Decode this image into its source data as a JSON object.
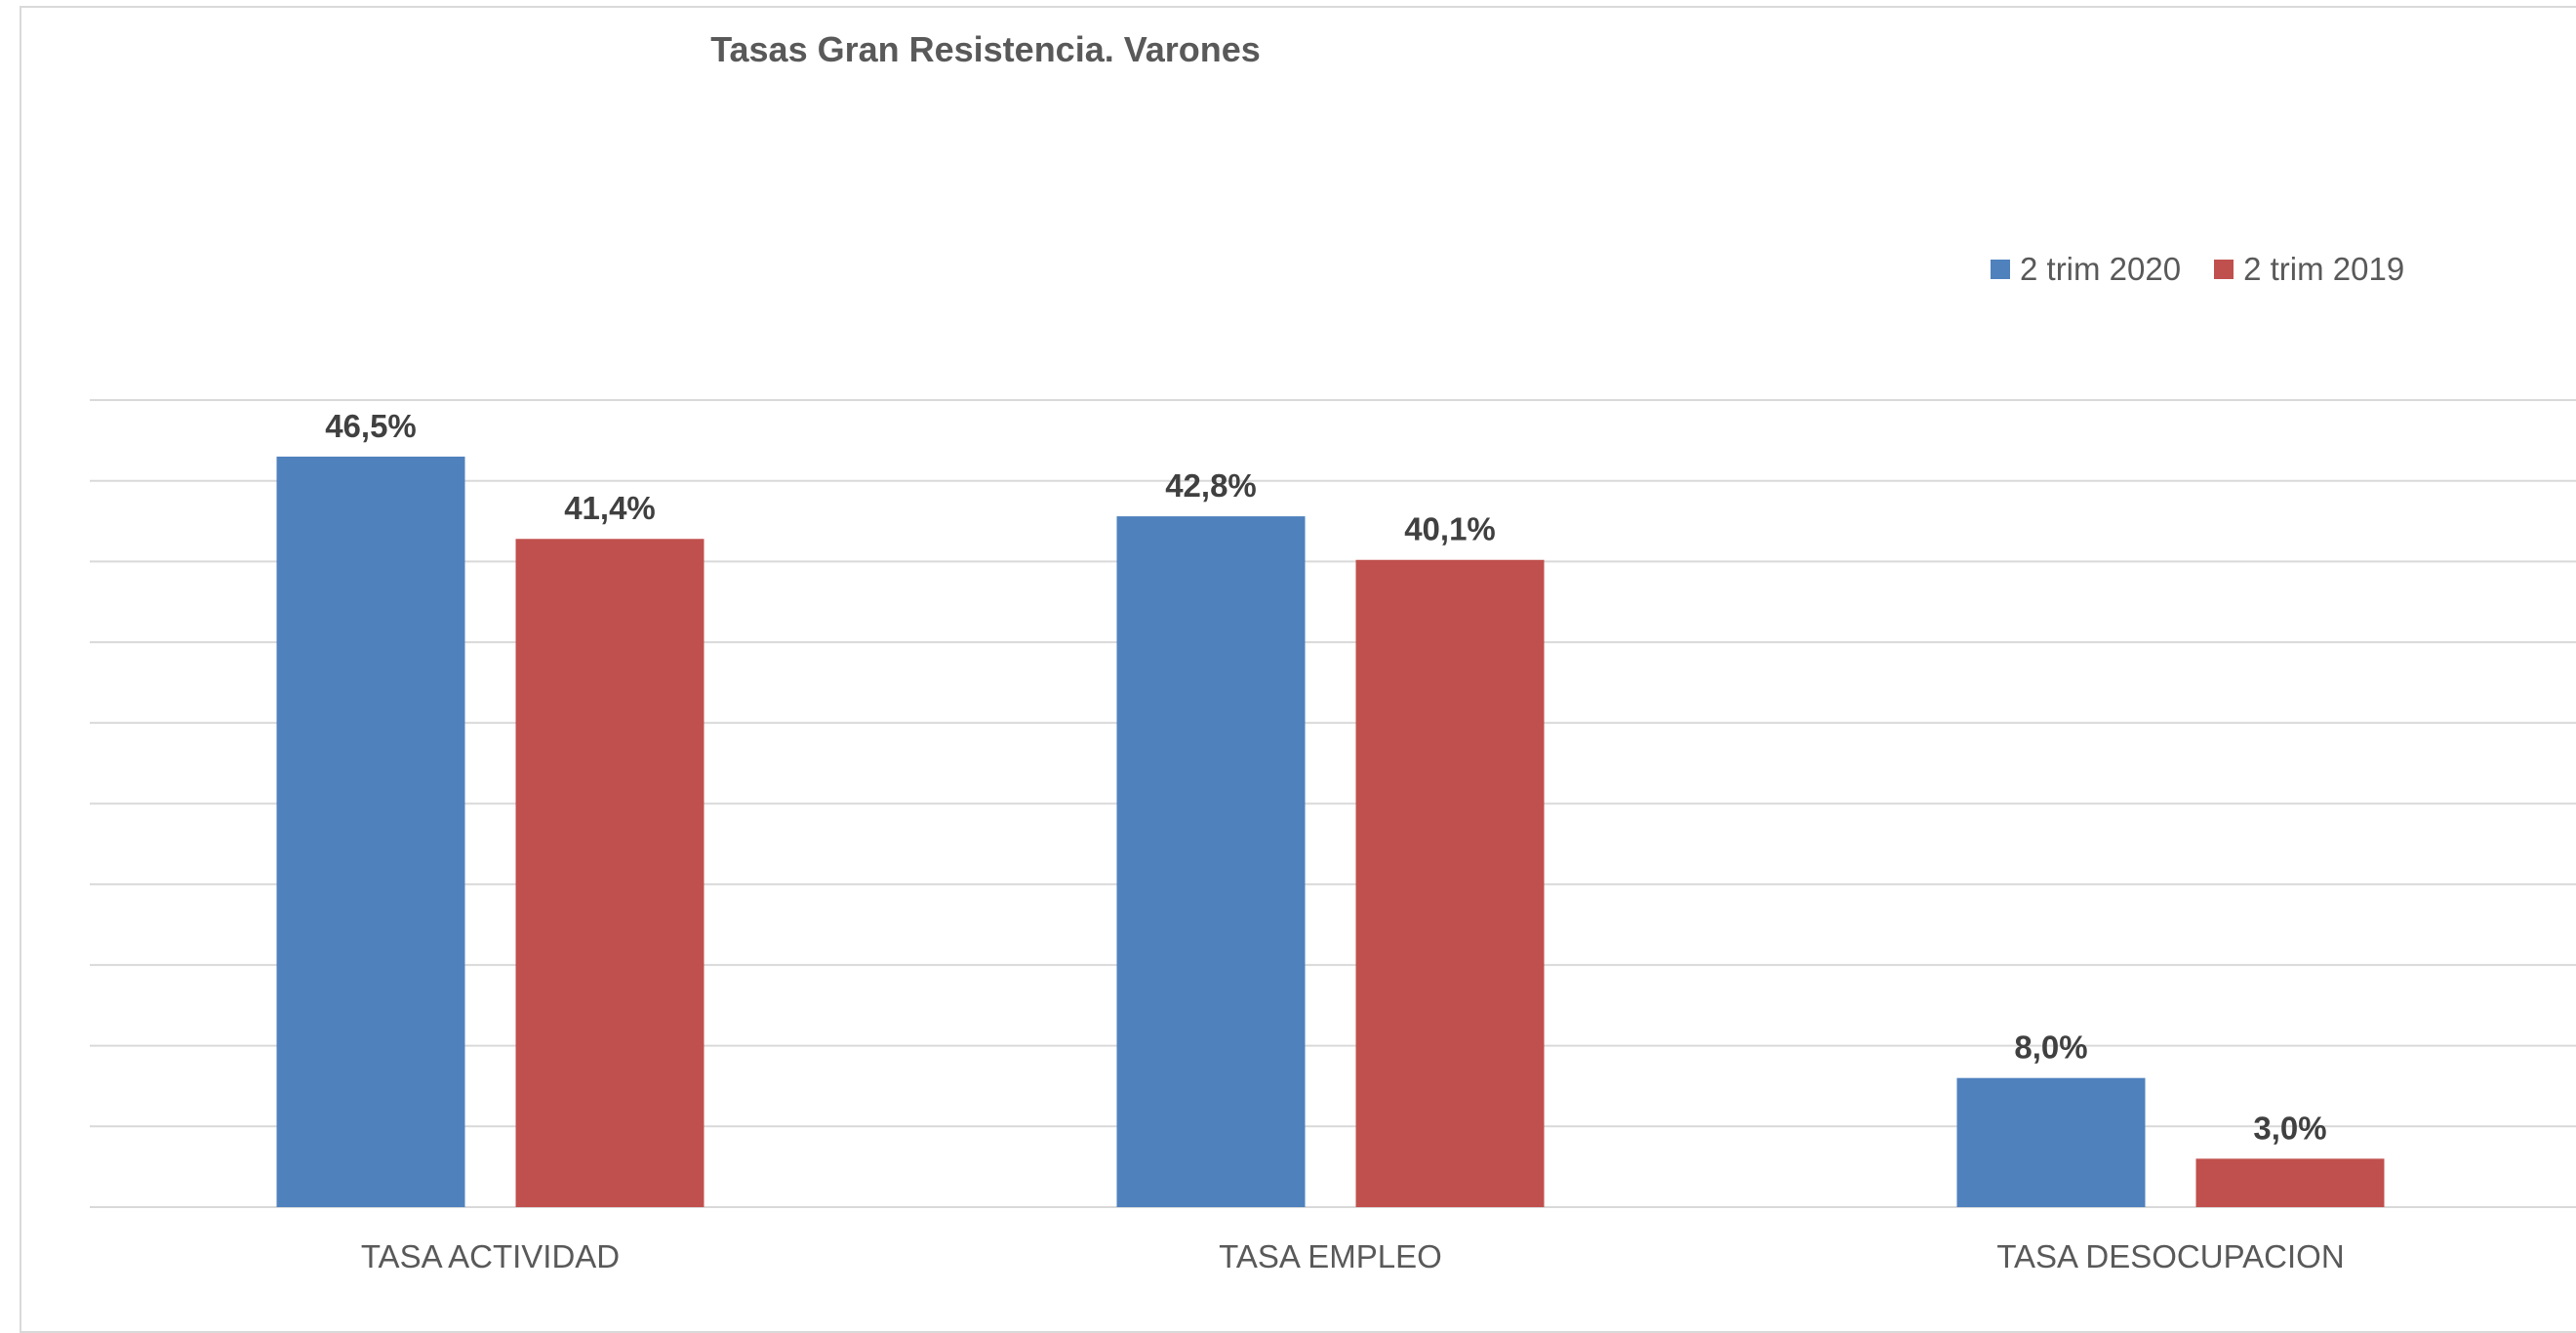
{
  "chart_data": {
    "type": "bar",
    "title": "Tasas Gran Resistencia. Varones",
    "xlabel": "",
    "ylabel": "",
    "categories": [
      "TASA ACTIVIDAD",
      "TASA EMPLEO",
      "TASA DESOCUPACION"
    ],
    "series": [
      {
        "name": "2 trim 2020",
        "values": [
          46.5,
          42.8,
          8.0
        ],
        "labels": [
          "46,5%",
          "42,8%",
          "8,0%"
        ],
        "color": "#4f81bd"
      },
      {
        "name": "2 trim 2019",
        "values": [
          41.4,
          40.1,
          3.0
        ],
        "labels": [
          "41,4%",
          "40,1%",
          "3,0%"
        ],
        "color": "#c0504d"
      }
    ],
    "ylim": [
      0,
      50
    ],
    "grid": true,
    "legend_position": "top-right"
  }
}
